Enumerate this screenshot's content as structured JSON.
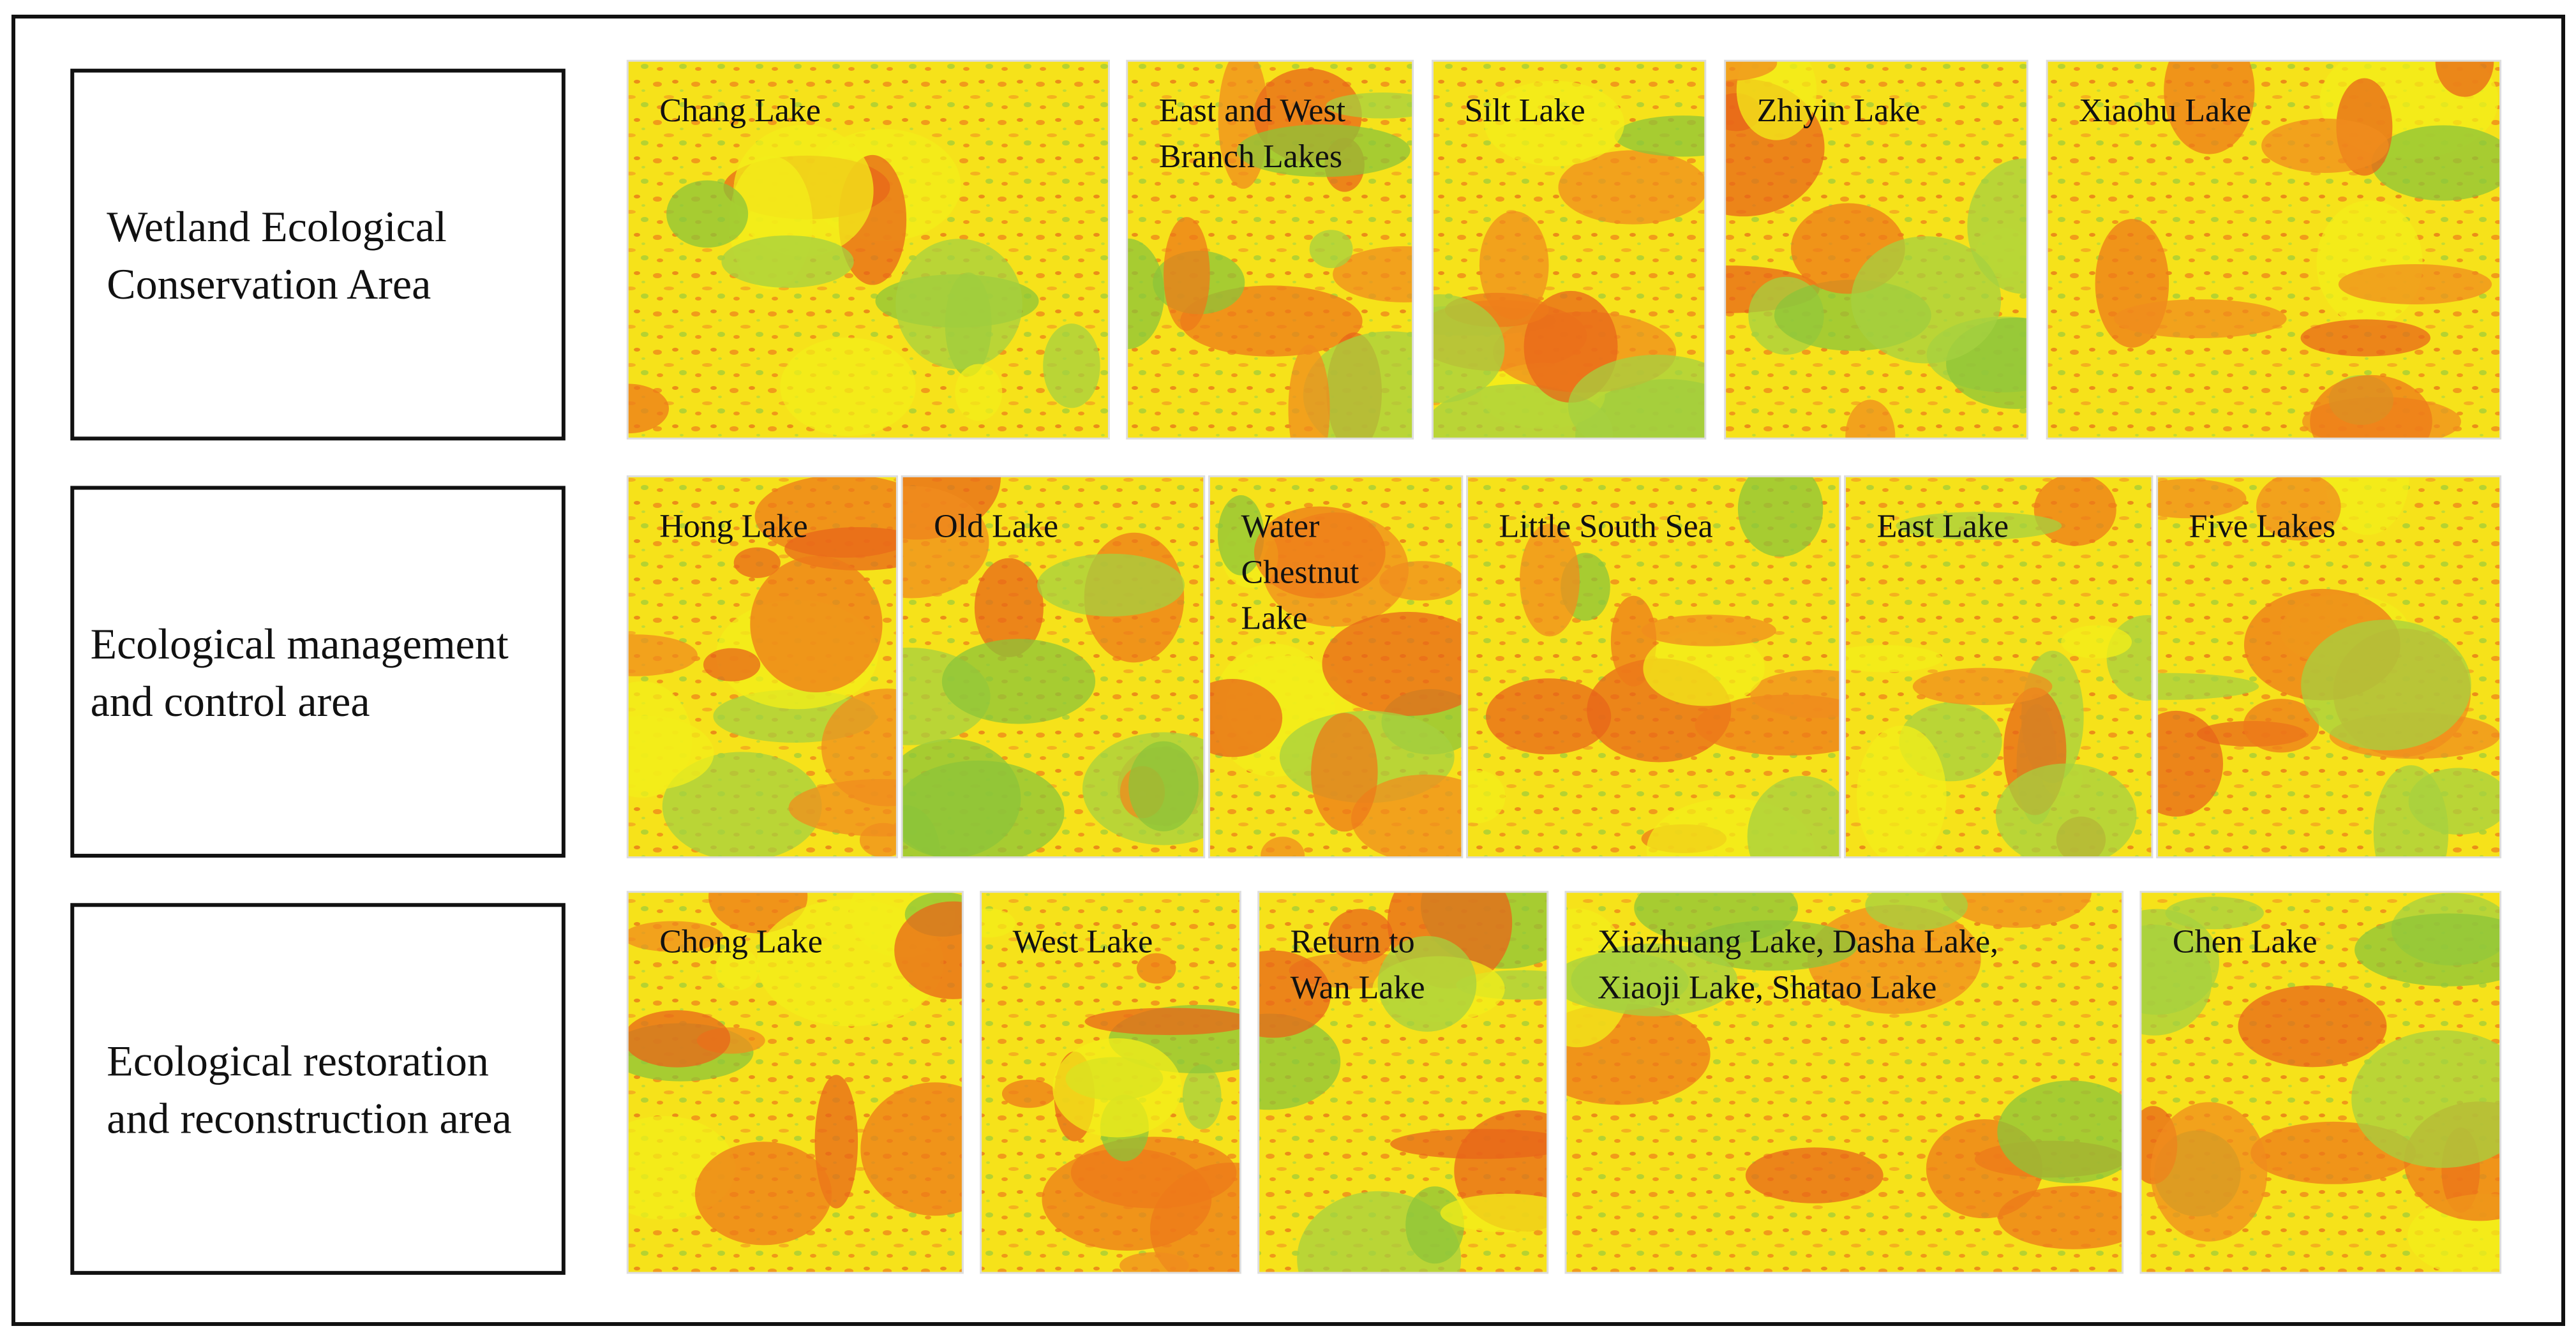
{
  "rows": [
    {
      "label": [
        "Wetland Ecological",
        "Conservation Area"
      ],
      "panels": [
        {
          "label": [
            "Chang Lake"
          ]
        },
        {
          "label": [
            "East and West",
            "Branch Lakes"
          ]
        },
        {
          "label": [
            "Silt Lake"
          ]
        },
        {
          "label": [
            "Zhiyin Lake"
          ]
        },
        {
          "label": [
            "Xiaohu Lake"
          ]
        }
      ]
    },
    {
      "label": [
        "Ecological management",
        "and control area"
      ],
      "panels": [
        {
          "label": [
            "Hong Lake"
          ]
        },
        {
          "label": [
            "Old Lake"
          ]
        },
        {
          "label": [
            "Water",
            "Chestnut",
            " Lake"
          ]
        },
        {
          "label": [
            "Little South Sea"
          ]
        },
        {
          "label": [
            "East Lake"
          ]
        },
        {
          "label": [
            "Five Lakes"
          ]
        }
      ]
    },
    {
      "label": [
        "Ecological restoration",
        "and reconstruction area"
      ],
      "panels": [
        {
          "label": [
            "Chong Lake"
          ]
        },
        {
          "label": [
            "West Lake"
          ]
        },
        {
          "label": [
            "Return to",
            "Wan Lake"
          ]
        },
        {
          "label": [
            "Xiazhuang Lake, Dasha Lake,",
            "Xiaoji Lake, Shatao Lake"
          ]
        },
        {
          "label": [
            "Chen Lake"
          ]
        }
      ]
    }
  ]
}
